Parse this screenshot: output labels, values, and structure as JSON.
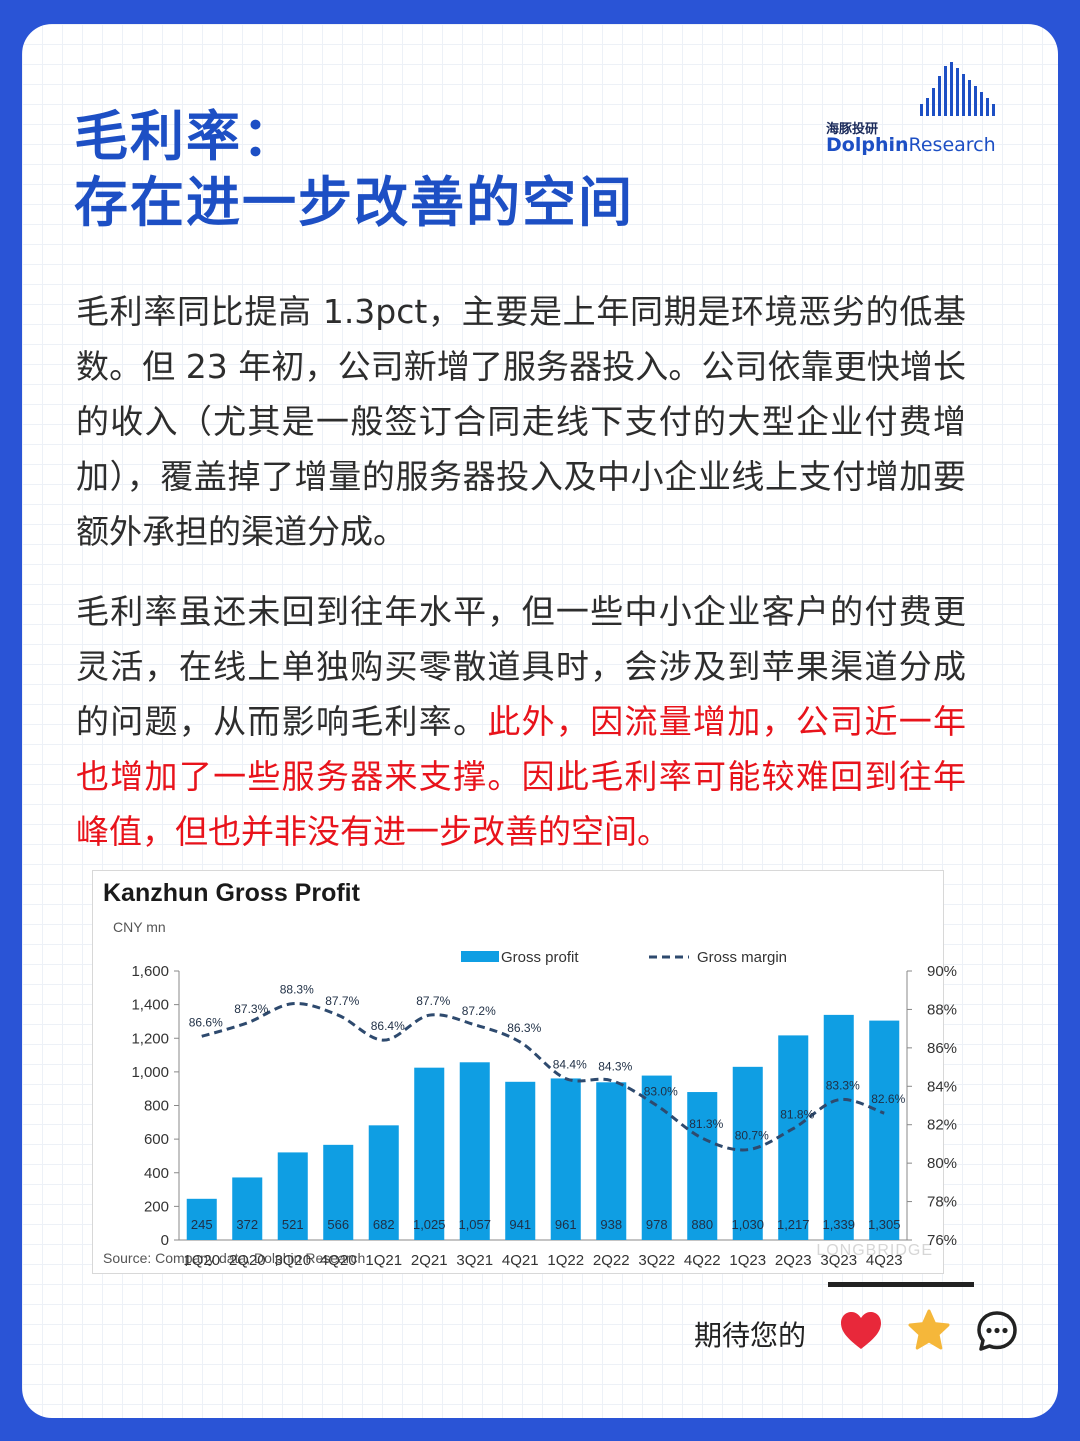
{
  "header": {
    "title_line1": "毛利率：",
    "title_line2": "存在进一步改善的空间",
    "logo_cn": "海豚投研",
    "logo_en_a": "Dolphin",
    "logo_en_b": "Research"
  },
  "body": {
    "para1": "毛利率同比提高 1.3pct，主要是上年同期是环境恶劣的低基数。但 23 年初，公司新增了服务器投入。公司依靠更快增长的收入（尤其是一般签订合同走线下支付的大型企业付费增加），覆盖掉了增量的服务器投入及中小企业线上支付增加要额外承担的渠道分成。",
    "para2_normal": "毛利率虽还未回到往年水平，但一些中小企业客户的付费更灵活，在线上单独购买零散道具时，会涉及到苹果渠道分成的问题，从而影响毛利率。",
    "para2_highlight": "此外，因流量增加，公司近一年也增加了一些服务器来支撑。因此毛利率可能较难回到往年峰值，但也并非没有进一步改善的空间。"
  },
  "chart_data": {
    "type": "bar",
    "title": "Kanzhun Gross Profit",
    "unit_label": "CNY mn",
    "source": "Source: Company data, Dolphin Research",
    "categories": [
      "1Q20",
      "2Q20",
      "3Q20",
      "4Q20",
      "1Q21",
      "2Q21",
      "3Q21",
      "4Q21",
      "1Q22",
      "2Q22",
      "3Q22",
      "4Q22",
      "1Q23",
      "2Q23",
      "3Q23",
      "4Q23"
    ],
    "series": [
      {
        "name": "Gross profit",
        "type": "bar",
        "axis": "left",
        "color": "#0f9ee3",
        "values": [
          245,
          372,
          521,
          566,
          682,
          1025,
          1057,
          941,
          961,
          938,
          978,
          880,
          1030,
          1217,
          1339,
          1305
        ],
        "labels": [
          "245",
          "372",
          "521",
          "566",
          "682",
          "1,025",
          "1,057",
          "941",
          "961",
          "938",
          "978",
          "880",
          "1,030",
          "1,217",
          "1,339",
          "1,305"
        ]
      },
      {
        "name": "Gross margin",
        "type": "line",
        "style": "dashed",
        "axis": "right",
        "color": "#2e4a6e",
        "values": [
          86.6,
          87.3,
          88.3,
          87.7,
          86.4,
          87.7,
          87.2,
          86.3,
          84.4,
          84.3,
          83.0,
          81.3,
          80.7,
          81.8,
          83.3,
          82.6
        ],
        "labels": [
          "86.6%",
          "87.3%",
          "88.3%",
          "87.7%",
          "86.4%",
          "87.7%",
          "87.2%",
          "86.3%",
          "84.4%",
          "84.3%",
          "83.0%",
          "81.3%",
          "80.7%",
          "81.8%",
          "83.3%",
          "82.6%"
        ]
      }
    ],
    "y_left": {
      "min": 0,
      "max": 1600,
      "ticks": [
        "1,600",
        "1,400",
        "1,200",
        "1,000",
        "800",
        "600",
        "400",
        "200",
        "0"
      ]
    },
    "y_right": {
      "min": 76,
      "max": 90,
      "ticks": [
        "90%",
        "88%",
        "86%",
        "84%",
        "82%",
        "80%",
        "78%",
        "76%"
      ]
    },
    "legend_position": "top",
    "watermark": "LONGBRIDGE"
  },
  "footer": {
    "text": "期待您的",
    "icons": [
      "heart-icon",
      "star-icon",
      "comment-icon"
    ],
    "colors": {
      "heart": "#e8283a",
      "star": "#f5b73a"
    }
  }
}
